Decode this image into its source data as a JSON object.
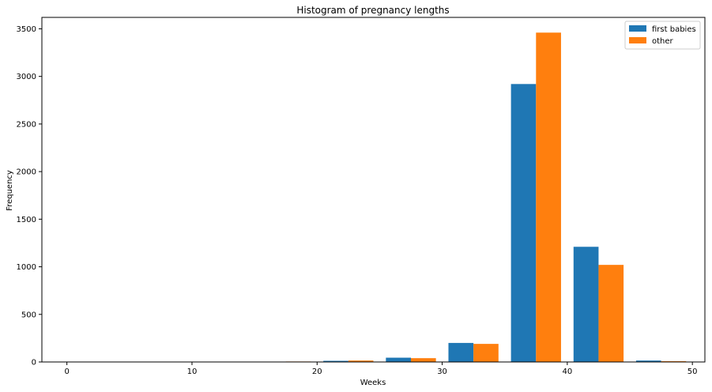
{
  "chart_data": {
    "type": "bar",
    "title": "Histogram of pregnancy lengths",
    "xlabel": "Weeks",
    "ylabel": "Frequency",
    "xlim": [
      -2,
      51
    ],
    "ylim": [
      0,
      3620
    ],
    "x_ticks": [
      0,
      10,
      20,
      30,
      40,
      50
    ],
    "y_ticks": [
      0,
      500,
      1000,
      1500,
      2000,
      2500,
      3000,
      3500
    ],
    "bin_edges": [
      0,
      5,
      10,
      15,
      20,
      25,
      30,
      35,
      40,
      45,
      50
    ],
    "legend": {
      "position": "top-right"
    },
    "series": [
      {
        "name": "first babies",
        "color": "#1f77b4",
        "values": [
          0,
          0,
          0,
          0,
          12,
          45,
          200,
          2920,
          1210,
          15
        ]
      },
      {
        "name": "other",
        "color": "#ff7f0e",
        "values": [
          0,
          0,
          0,
          5,
          15,
          40,
          190,
          3460,
          1020,
          8
        ]
      }
    ]
  }
}
